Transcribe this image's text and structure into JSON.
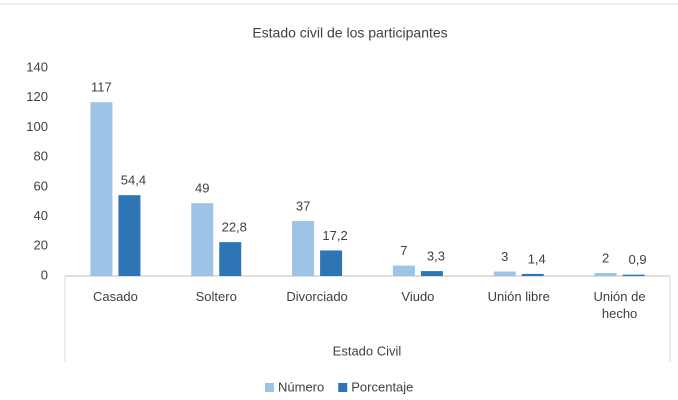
{
  "chart_data": {
    "type": "bar",
    "title": "Estado civil de los participantes",
    "x_label": "Estado Civil",
    "categories": [
      "Casado",
      "Soltero",
      "Divorciado",
      "Viudo",
      "Unión libre",
      "Unión de hecho"
    ],
    "series": [
      {
        "name": "Número",
        "color": "#9dc3e6",
        "values": [
          117,
          49,
          37,
          7,
          3,
          2
        ]
      },
      {
        "name": "Porcentaje",
        "color": "#2e75b6",
        "values": [
          54.4,
          22.8,
          17.2,
          3.3,
          1.4,
          0.9
        ],
        "value_labels": [
          "54,4",
          "22,8",
          "17,2",
          "3,3",
          "1,4",
          "0,9"
        ]
      }
    ],
    "ylim": [
      0,
      140
    ],
    "yticks": [
      0,
      20,
      40,
      60,
      80,
      100,
      120,
      140
    ],
    "grid": false,
    "legend": "bottom"
  }
}
